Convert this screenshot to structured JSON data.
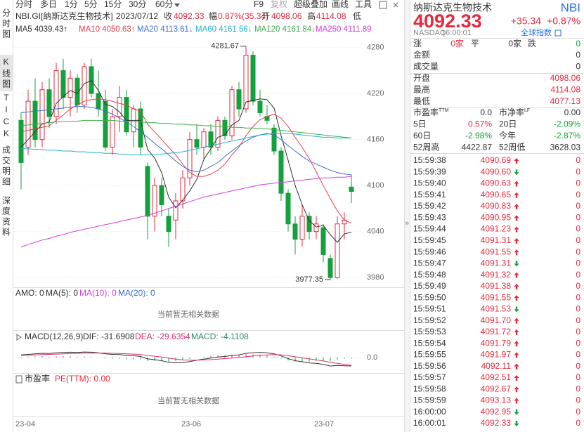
{
  "toolbar": {
    "periods": [
      "分时",
      "多日",
      "1分",
      "5分",
      "15分",
      "30分",
      "60分"
    ],
    "tools": [
      "F9",
      "复权",
      "超级叠加",
      "画线",
      "工具"
    ]
  },
  "side_tabs": [
    "分时图",
    "K线图",
    "TICK",
    "成交明细",
    "深度资料"
  ],
  "header": {
    "symbol": "NBI.GI[纳斯达克生物技术]",
    "date": "2023/07/12",
    "close_label": "收",
    "close": "4092.33",
    "range_label": "幅",
    "range": "0.87%(35.34)",
    "open_label": "开",
    "open": "4098.06",
    "high_label": "高",
    "high": "4114.08",
    "low_label": "低"
  },
  "chart_data": [
    {
      "type": "candlestick",
      "up_color": "#e8283c",
      "down_color": "#13a13b",
      "ylim": [
        3971,
        4287
      ],
      "yticks": [
        3980,
        4040,
        4100,
        4160,
        4220,
        4280
      ],
      "grid": true,
      "high_label": 4281.67,
      "low_label": 3977.35,
      "candles": [
        [
          4185,
          4195,
          4095,
          4130
        ],
        [
          4150,
          4225,
          4140,
          4210
        ],
        [
          4210,
          4240,
          4150,
          4160
        ],
        [
          4160,
          4235,
          4150,
          4225
        ],
        [
          4225,
          4240,
          4175,
          4190
        ],
        [
          4190,
          4260,
          4180,
          4250
        ],
        [
          4250,
          4265,
          4200,
          4215
        ],
        [
          4215,
          4250,
          4190,
          4240
        ],
        [
          4240,
          4245,
          4195,
          4205
        ],
        [
          4205,
          4260,
          4200,
          4255
        ],
        [
          4255,
          4265,
          4215,
          4220
        ],
        [
          4220,
          4250,
          4190,
          4200
        ],
        [
          4210,
          4225,
          4145,
          4150
        ],
        [
          4150,
          4200,
          4140,
          4190
        ],
        [
          4190,
          4230,
          4170,
          4215
        ],
        [
          4215,
          4225,
          4165,
          4170
        ],
        [
          4170,
          4205,
          4150,
          4200
        ],
        [
          4200,
          4210,
          4140,
          4150
        ],
        [
          4125,
          4130,
          4030,
          4060
        ],
        [
          4060,
          4110,
          4040,
          4100
        ],
        [
          4100,
          4110,
          4060,
          4075
        ],
        [
          4060,
          4070,
          4020,
          4040
        ],
        [
          4055,
          4090,
          4030,
          4080
        ],
        [
          4080,
          4120,
          4070,
          4110
        ],
        [
          4110,
          4170,
          4100,
          4160
        ],
        [
          4160,
          4180,
          4140,
          4150
        ],
        [
          4150,
          4175,
          4135,
          4170
        ],
        [
          4170,
          4180,
          4140,
          4150
        ],
        [
          4150,
          4190,
          4145,
          4185
        ],
        [
          4185,
          4190,
          4160,
          4165
        ],
        [
          4165,
          4230,
          4160,
          4225
        ],
        [
          4225,
          4235,
          4190,
          4200
        ],
        [
          4200,
          4281.67,
          4195,
          4270
        ],
        [
          4270,
          4275,
          4205,
          4210
        ],
        [
          4210,
          4225,
          4190,
          4195
        ],
        [
          4190,
          4205,
          4180,
          4185
        ],
        [
          4175,
          4180,
          4140,
          4145
        ],
        [
          4145,
          4150,
          4080,
          4090
        ],
        [
          4090,
          4095,
          4040,
          4050
        ],
        [
          4050,
          4060,
          4010,
          4030
        ],
        [
          4030,
          4075,
          4020,
          4060
        ],
        [
          4060,
          4065,
          4030,
          4040
        ],
        [
          4040,
          4060,
          4030,
          4050
        ],
        [
          4045,
          4050,
          4000,
          4010
        ],
        [
          4005,
          4010,
          3977.35,
          3980
        ],
        [
          3980,
          4060,
          3978,
          4050
        ],
        [
          4050,
          4065,
          4030,
          4055
        ],
        [
          4098.06,
          4114.08,
          4077.13,
          4092.33
        ]
      ],
      "series": [
        {
          "name": "MA5 4039.43↑",
          "color": "#333333",
          "values": [
            4150,
            4160,
            4170,
            4180,
            4183,
            4207,
            4216,
            4224,
            4220,
            4233,
            4237,
            4224,
            4206,
            4203,
            4196,
            4185,
            4185,
            4185,
            4147,
            4136,
            4117,
            4085,
            4071,
            4081,
            4093,
            4108,
            4134,
            4148,
            4163,
            4166,
            4179,
            4185,
            4209,
            4211,
            4213,
            4212,
            4201,
            4165,
            4133,
            4100,
            4075,
            4054,
            4046,
            4048,
            4036,
            4026,
            4037,
            4039
          ]
        },
        {
          "name": "MA10 4050.63↑",
          "color": "#e8414d",
          "values": [
            4170,
            4172,
            4174,
            4176,
            4178,
            4185,
            4192,
            4200,
            4205,
            4210,
            4212,
            4213,
            4212,
            4210,
            4207,
            4205,
            4200,
            4197,
            4180,
            4170,
            4160,
            4150,
            4140,
            4128,
            4117,
            4112,
            4112,
            4115,
            4120,
            4128,
            4140,
            4150,
            4165,
            4177,
            4186,
            4190,
            4193,
            4188,
            4177,
            4163,
            4150,
            4135,
            4118,
            4100,
            4083,
            4067,
            4055,
            4051
          ]
        },
        {
          "name": "MA20 4113.61↓",
          "color": "#3b6fd6",
          "values": [
            4195,
            4196,
            4197,
            4198,
            4199,
            4200,
            4201,
            4202,
            4203,
            4203,
            4202,
            4200,
            4197,
            4193,
            4188,
            4183,
            4177,
            4170,
            4163,
            4155,
            4148,
            4140,
            4132,
            4125,
            4120,
            4118,
            4120,
            4125,
            4130,
            4138,
            4145,
            4152,
            4158,
            4163,
            4166,
            4168,
            4166,
            4160,
            4152,
            4145,
            4138,
            4132,
            4128,
            4124,
            4120,
            4117,
            4115,
            4114
          ]
        },
        {
          "name": "MA60 4161.56↓",
          "color": "#25b0c8",
          "values": [
            4148,
            4148,
            4147,
            4147,
            4146,
            4146,
            4145,
            4145,
            4144,
            4144,
            4143,
            4143,
            4142,
            4142,
            4141,
            4141,
            4140,
            4140,
            4140,
            4140,
            4141,
            4142,
            4143,
            4144,
            4146,
            4148,
            4150,
            4152,
            4154,
            4156,
            4158,
            4160,
            4162,
            4164,
            4166,
            4167,
            4168,
            4168,
            4168,
            4167,
            4166,
            4165,
            4164,
            4163,
            4163,
            4162,
            4162,
            4162
          ]
        },
        {
          "name": "MA120 4161.84↓",
          "color": "#3fae49",
          "values": [
            4178,
            4179,
            4180,
            4181,
            4182,
            4183,
            4183,
            4184,
            4184,
            4185,
            4185,
            4185,
            4185,
            4185,
            4184,
            4184,
            4183,
            4183,
            4182,
            4182,
            4181,
            4181,
            4180,
            4180,
            4179,
            4179,
            4178,
            4178,
            4177,
            4177,
            4176,
            4176,
            4175,
            4175,
            4174,
            4174,
            4173,
            4172,
            4171,
            4170,
            4169,
            4168,
            4167,
            4166,
            4165,
            4164,
            4163,
            4162
          ]
        },
        {
          "name": "MA250 4111.89",
          "color": "#d43fd4",
          "values": [
            4020,
            4023,
            4026,
            4029,
            4031,
            4034,
            4036,
            4039,
            4041,
            4043,
            4045,
            4047,
            4049,
            4051,
            4053,
            4055,
            4057,
            4059,
            4061,
            4064,
            4067,
            4070,
            4073,
            4076,
            4079,
            4082,
            4085,
            4087,
            4089,
            4091,
            4093,
            4095,
            4097,
            4099,
            4101,
            4102,
            4103,
            4104,
            4105,
            4106,
            4107,
            4108,
            4109,
            4110,
            4110,
            4111,
            4111,
            4112
          ]
        }
      ],
      "x_labels": [
        "23-04",
        "23-06",
        "23-07"
      ]
    },
    {
      "type": "macd",
      "title": "MACD(12,26,9)",
      "ylim": [
        -45,
        45
      ],
      "yticks": [
        {
          "value": 0,
          "label": "0.0"
        }
      ],
      "series": [
        {
          "name": "DIF: -31.6908",
          "color": "#333333",
          "values": [
            10,
            12,
            14,
            16,
            15,
            18,
            19,
            20,
            19,
            21,
            20,
            18,
            14,
            12,
            11,
            8,
            7,
            4,
            -5,
            -8,
            -12,
            -18,
            -20,
            -19,
            -15,
            -10,
            -6,
            -2,
            2,
            4,
            8,
            10,
            16,
            18,
            19,
            18,
            14,
            6,
            -4,
            -12,
            -16,
            -20,
            -22,
            -26,
            -32,
            -30,
            -31,
            -31.69
          ]
        },
        {
          "name": "DEA: -29.6354",
          "color": "#e0306a",
          "values": [
            8,
            9,
            10,
            11,
            12,
            13,
            14,
            15,
            16,
            17,
            17,
            17,
            17,
            16,
            15,
            14,
            13,
            11,
            8,
            5,
            2,
            -2,
            -6,
            -9,
            -10,
            -10,
            -9,
            -8,
            -6,
            -4,
            -2,
            0,
            3,
            6,
            8,
            10,
            11,
            10,
            7,
            3,
            -1,
            -5,
            -9,
            -13,
            -18,
            -22,
            -26,
            -29.64
          ]
        }
      ],
      "bars": {
        "name": "MACD: -4.1108",
        "color": "#2a8c6a",
        "values": [
          2,
          3,
          4,
          5,
          3,
          5,
          5,
          5,
          3,
          4,
          3,
          1,
          -3,
          -4,
          -4,
          -6,
          -6,
          -7,
          -13,
          -13,
          -14,
          -16,
          -14,
          -10,
          -5,
          0,
          3,
          6,
          8,
          8,
          10,
          10,
          13,
          12,
          11,
          8,
          3,
          -4,
          -11,
          -15,
          -15,
          -15,
          -13,
          -13,
          -14,
          -8,
          -5,
          -4.11
        ]
      }
    }
  ],
  "volume_panel": {
    "legend": [
      {
        "text": "AMO: 0",
        "color": "#333333"
      },
      {
        "text": "MA(5): 0",
        "color": "#333333"
      },
      {
        "text": "MA(10): 0",
        "color": "#d43fd4"
      },
      {
        "text": "MA(20): 0",
        "color": "#3b6fd6"
      }
    ]
  },
  "pe_panel": {
    "title": "市盈率",
    "legend": "PE(TTM): 0.00"
  },
  "no_data": "当前暂无相关数据",
  "collapse": "»",
  "quote": {
    "name": "纳斯达克生物技术",
    "code": "NBI",
    "price": "4092.33",
    "change": "+35.34",
    "change_pct": "+0.87%",
    "market": "NASDAQ",
    "time": "16:00:01",
    "link": "全球指数"
  },
  "breadth": [
    {
      "label": "涨",
      "value": "0家",
      "tone": "up"
    },
    {
      "label": "平",
      "value": "0家",
      "tone": "flat"
    },
    {
      "label": "跌",
      "value": "0",
      "tone": "down"
    }
  ],
  "summary": [
    {
      "label": "金额",
      "value": "0"
    },
    {
      "label": "成交量",
      "value": "0"
    }
  ],
  "prices": [
    {
      "label": "开盘",
      "value": "4098.06"
    },
    {
      "label": "最高",
      "value": "4114.08"
    },
    {
      "label": "最低",
      "value": "4077.13"
    }
  ],
  "metrics": [
    [
      {
        "label": "市盈率",
        "sup": "TTM",
        "value": "0.0",
        "tone": "flat"
      },
      {
        "label": "市净率",
        "sup": "LF",
        "value": "0.00",
        "tone": "flat"
      }
    ],
    [
      {
        "label": "5日",
        "value": "0.57%",
        "tone": "up"
      },
      {
        "label": "20日",
        "value": "-2.09%",
        "tone": "down"
      }
    ],
    [
      {
        "label": "60日",
        "value": "-2.98%",
        "tone": "down"
      },
      {
        "label": "今年",
        "value": "-2.87%",
        "tone": "down"
      }
    ],
    [
      {
        "label": "52周高",
        "value": "4422.87",
        "tone": "flat"
      },
      {
        "label": "52周低",
        "value": "3628.03",
        "tone": "flat"
      }
    ]
  ],
  "ticks": [
    {
      "time": "15:59:38",
      "price": "4090.69",
      "dir": "up",
      "volume": "0"
    },
    {
      "time": "15:59:39",
      "price": "4090.60",
      "dir": "down",
      "volume": "0"
    },
    {
      "time": "15:59:40",
      "price": "4090.63",
      "dir": "up",
      "volume": "0"
    },
    {
      "time": "15:59:41",
      "price": "4090.65",
      "dir": "up",
      "volume": "0"
    },
    {
      "time": "15:59:42",
      "price": "4090.83",
      "dir": "up",
      "volume": "0"
    },
    {
      "time": "15:59:43",
      "price": "4090.95",
      "dir": "up",
      "volume": "0"
    },
    {
      "time": "15:59:44",
      "price": "4091.23",
      "dir": "up",
      "volume": "0"
    },
    {
      "time": "15:59:45",
      "price": "4091.31",
      "dir": "up",
      "volume": "0"
    },
    {
      "time": "15:59:46",
      "price": "4091.55",
      "dir": "up",
      "volume": "0"
    },
    {
      "time": "15:59:47",
      "price": "4091.31",
      "dir": "down",
      "volume": "0"
    },
    {
      "time": "15:59:48",
      "price": "4091.32",
      "dir": "up",
      "volume": "0"
    },
    {
      "time": "15:59:49",
      "price": "4091.38",
      "dir": "up",
      "volume": "0"
    },
    {
      "time": "15:59:50",
      "price": "4091.55",
      "dir": "up",
      "volume": "0"
    },
    {
      "time": "15:59:51",
      "price": "4091.53",
      "dir": "down",
      "volume": "0"
    },
    {
      "time": "15:59:52",
      "price": "4091.70",
      "dir": "up",
      "volume": "0"
    },
    {
      "time": "15:59:53",
      "price": "4091.72",
      "dir": "up",
      "volume": "0"
    },
    {
      "time": "15:59:54",
      "price": "4091.79",
      "dir": "up",
      "volume": "0"
    },
    {
      "time": "15:59:55",
      "price": "4091.97",
      "dir": "up",
      "volume": "0"
    },
    {
      "time": "15:59:56",
      "price": "4092.11",
      "dir": "up",
      "volume": "0"
    },
    {
      "time": "15:59:57",
      "price": "4092.51",
      "dir": "up",
      "volume": "0"
    },
    {
      "time": "15:59:58",
      "price": "4092.67",
      "dir": "up",
      "volume": "0"
    },
    {
      "time": "15:59:59",
      "price": "4093.13",
      "dir": "up",
      "volume": "0"
    },
    {
      "time": "16:00:00",
      "price": "4092.95",
      "dir": "down",
      "volume": "0"
    },
    {
      "time": "16:00:01",
      "price": "4092.33",
      "dir": "down",
      "volume": "0"
    }
  ]
}
